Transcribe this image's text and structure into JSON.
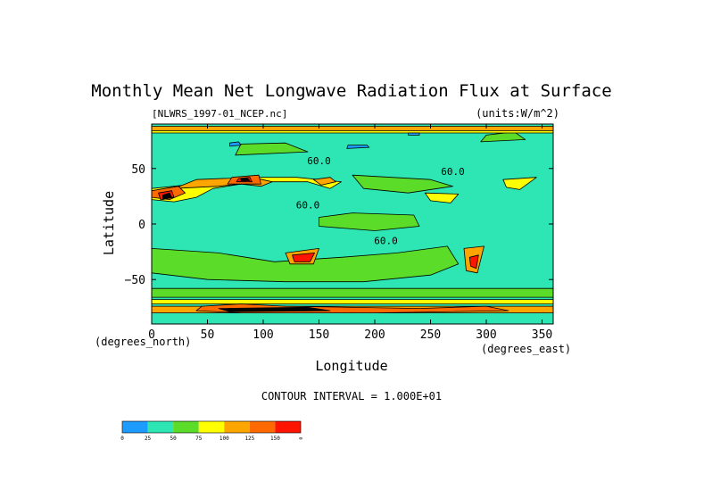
{
  "chart_data": {
    "type": "heatmap",
    "title": "Monthly Mean Net Longwave Radiation Flux at Surface",
    "file_label": "[NLWRS_1997-01_NCEP.nc]",
    "units_label": "(units:W/m^2)",
    "xlabel": "Longitude",
    "ylabel": "Latitude",
    "x_unit_label": "(degrees_east)",
    "y_unit_label": "(degrees_north)",
    "xlim": [
      0,
      360
    ],
    "ylim": [
      -90,
      90
    ],
    "x_ticks": [
      0,
      50,
      100,
      150,
      200,
      250,
      300,
      350
    ],
    "y_ticks": [
      50,
      0,
      -50
    ],
    "contour_interval_text": "CONTOUR INTERVAL = 1.000E+01",
    "contour_labels": [
      {
        "text": "60.0",
        "lon": 150,
        "lat": 54
      },
      {
        "text": "60.0",
        "lon": 270,
        "lat": 44
      },
      {
        "text": "60.0",
        "lon": 140,
        "lat": 14
      },
      {
        "text": "60.0",
        "lon": 210,
        "lat": -18
      }
    ],
    "colorbar": {
      "bounds": [
        "0",
        "25",
        "50",
        "75",
        "100",
        "125",
        "150",
        "∞"
      ],
      "colors": [
        "#1e9bff",
        "#2ee6b4",
        "#5adc28",
        "#ffff00",
        "#ffa500",
        "#ff6a00",
        "#ff1400"
      ]
    },
    "regions": [
      {
        "level": 1,
        "points": [
          [
            0,
            -90
          ],
          [
            360,
            -90
          ],
          [
            360,
            90
          ],
          [
            0,
            90
          ]
        ]
      },
      {
        "level": 2,
        "points": [
          [
            0,
            -22
          ],
          [
            60,
            -26
          ],
          [
            110,
            -34
          ],
          [
            170,
            -30
          ],
          [
            220,
            -26
          ],
          [
            265,
            -20
          ],
          [
            275,
            -36
          ],
          [
            250,
            -46
          ],
          [
            190,
            -52
          ],
          [
            120,
            -52
          ],
          [
            50,
            -50
          ],
          [
            0,
            -44
          ]
        ]
      },
      {
        "level": 2,
        "points": [
          [
            150,
            -2
          ],
          [
            200,
            -6
          ],
          [
            240,
            -2
          ],
          [
            235,
            8
          ],
          [
            180,
            10
          ],
          [
            150,
            6
          ]
        ]
      },
      {
        "level": 2,
        "points": [
          [
            180,
            44
          ],
          [
            250,
            40
          ],
          [
            270,
            34
          ],
          [
            230,
            28
          ],
          [
            190,
            32
          ]
        ]
      },
      {
        "level": 2,
        "points": [
          [
            0,
            -58
          ],
          [
            360,
            -58
          ],
          [
            360,
            -66
          ],
          [
            0,
            -66
          ]
        ]
      },
      {
        "level": 2,
        "points": [
          [
            75,
            62
          ],
          [
            140,
            65
          ],
          [
            120,
            73
          ],
          [
            80,
            72
          ]
        ]
      },
      {
        "level": 2,
        "points": [
          [
            295,
            74
          ],
          [
            335,
            76
          ],
          [
            325,
            83
          ],
          [
            300,
            80
          ]
        ]
      },
      {
        "level": 3,
        "points": [
          [
            0,
            22
          ],
          [
            20,
            20
          ],
          [
            40,
            24
          ],
          [
            55,
            32
          ],
          [
            80,
            36
          ],
          [
            105,
            38
          ],
          [
            140,
            38
          ],
          [
            160,
            32
          ],
          [
            170,
            38
          ],
          [
            130,
            42
          ],
          [
            80,
            42
          ],
          [
            40,
            36
          ],
          [
            0,
            32
          ]
        ]
      },
      {
        "level": 3,
        "points": [
          [
            0,
            -68
          ],
          [
            360,
            -68
          ],
          [
            360,
            -72
          ],
          [
            0,
            -72
          ]
        ]
      },
      {
        "level": 3,
        "points": [
          [
            0,
            82
          ],
          [
            360,
            82
          ],
          [
            360,
            86
          ],
          [
            0,
            86
          ]
        ]
      },
      {
        "level": 3,
        "points": [
          [
            245,
            28
          ],
          [
            275,
            27
          ],
          [
            268,
            19
          ],
          [
            250,
            21
          ]
        ]
      },
      {
        "level": 3,
        "points": [
          [
            315,
            40
          ],
          [
            345,
            42
          ],
          [
            330,
            31
          ],
          [
            318,
            33
          ]
        ]
      },
      {
        "level": 4,
        "points": [
          [
            20,
            32
          ],
          [
            60,
            34
          ],
          [
            80,
            36
          ],
          [
            98,
            34
          ],
          [
            108,
            38
          ],
          [
            90,
            42
          ],
          [
            40,
            40
          ]
        ]
      },
      {
        "level": 4,
        "points": [
          [
            120,
            -26
          ],
          [
            150,
            -22
          ],
          [
            145,
            -36
          ],
          [
            124,
            -36
          ]
        ]
      },
      {
        "level": 4,
        "points": [
          [
            280,
            -22
          ],
          [
            298,
            -20
          ],
          [
            292,
            -44
          ],
          [
            282,
            -42
          ]
        ]
      },
      {
        "level": 4,
        "points": [
          [
            0,
            -74
          ],
          [
            360,
            -74
          ],
          [
            360,
            -80
          ],
          [
            0,
            -80
          ]
        ]
      },
      {
        "level": 4,
        "points": [
          [
            0,
            84
          ],
          [
            360,
            84
          ],
          [
            360,
            88
          ],
          [
            0,
            88
          ]
        ]
      },
      {
        "level": 4,
        "points": [
          [
            145,
            40
          ],
          [
            160,
            42
          ],
          [
            165,
            38
          ],
          [
            152,
            35
          ]
        ]
      },
      {
        "level": 5,
        "points": [
          [
            0,
            24
          ],
          [
            16,
            22
          ],
          [
            30,
            28
          ],
          [
            24,
            34
          ],
          [
            0,
            30
          ]
        ]
      },
      {
        "level": 5,
        "points": [
          [
            68,
            36
          ],
          [
            98,
            36
          ],
          [
            96,
            44
          ],
          [
            72,
            42
          ]
        ]
      },
      {
        "level": 5,
        "points": [
          [
            45,
            -74
          ],
          [
            80,
            -72
          ],
          [
            120,
            -74
          ],
          [
            240,
            -76
          ],
          [
            300,
            -74
          ],
          [
            320,
            -78
          ],
          [
            200,
            -80
          ],
          [
            80,
            -80
          ],
          [
            40,
            -78
          ]
        ]
      },
      {
        "level": 6,
        "points": [
          [
            8,
            22
          ],
          [
            20,
            24
          ],
          [
            18,
            30
          ],
          [
            6,
            28
          ]
        ]
      },
      {
        "level": 6,
        "points": [
          [
            76,
            38
          ],
          [
            90,
            38
          ],
          [
            88,
            42
          ],
          [
            78,
            41
          ]
        ]
      },
      {
        "level": 6,
        "points": [
          [
            126,
            -28
          ],
          [
            146,
            -26
          ],
          [
            142,
            -34
          ],
          [
            128,
            -34
          ]
        ]
      },
      {
        "level": 6,
        "points": [
          [
            285,
            -30
          ],
          [
            293,
            -28
          ],
          [
            291,
            -40
          ],
          [
            286,
            -38
          ]
        ]
      },
      {
        "level": 7,
        "points": [
          [
            10,
            22
          ],
          [
            18,
            24
          ],
          [
            16,
            28
          ],
          [
            10,
            26
          ]
        ]
      },
      {
        "level": 7,
        "points": [
          [
            80,
            39
          ],
          [
            88,
            39
          ],
          [
            86,
            41
          ],
          [
            80,
            41
          ]
        ]
      },
      {
        "level": 7,
        "points": [
          [
            60,
            -76
          ],
          [
            140,
            -75
          ],
          [
            160,
            -78
          ],
          [
            70,
            -79
          ]
        ]
      },
      {
        "level": 0,
        "points": [
          [
            70,
            70
          ],
          [
            80,
            71
          ],
          [
            78,
            74
          ],
          [
            70,
            73
          ]
        ]
      },
      {
        "level": 0,
        "points": [
          [
            175,
            68
          ],
          [
            195,
            69
          ],
          [
            193,
            71
          ],
          [
            176,
            71
          ]
        ]
      },
      {
        "level": 0,
        "points": [
          [
            230,
            80
          ],
          [
            240,
            80
          ],
          [
            240,
            82
          ],
          [
            230,
            82
          ]
        ]
      }
    ],
    "grid": false,
    "legend": "bottom-left"
  }
}
